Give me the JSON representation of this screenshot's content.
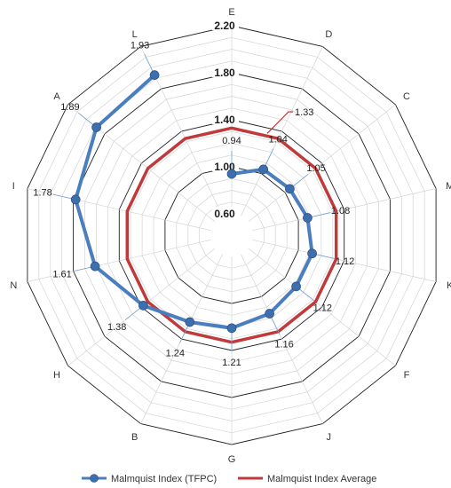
{
  "chart_data": {
    "type": "radar",
    "categories": [
      "E",
      "D",
      "C",
      "M",
      "K",
      "F",
      "J",
      "G",
      "B",
      "H",
      "N",
      "I",
      "A",
      "L"
    ],
    "series": [
      {
        "name": "Malmquist Index (TFPC)",
        "color": "#4a7ebf",
        "values": [
          0.94,
          1.04,
          1.05,
          1.08,
          1.12,
          1.12,
          1.16,
          1.21,
          1.24,
          1.38,
          1.61,
          1.78,
          1.89,
          1.93
        ],
        "labels": [
          "0.94",
          "1.04",
          "1.05",
          "1.08",
          "1.12",
          "1.12",
          "1.16",
          "1.21",
          "1.24",
          "1.38",
          "1.61",
          "1.78",
          "1.89",
          "1.93"
        ]
      },
      {
        "name": "Malmquist Index Average",
        "color": "#c0393b",
        "values": [
          1.33,
          1.33,
          1.33,
          1.33,
          1.33,
          1.33,
          1.33,
          1.33,
          1.33,
          1.33,
          1.33,
          1.33,
          1.33,
          1.33
        ],
        "label": "1.33"
      }
    ],
    "rlim": [
      0.6,
      2.2
    ],
    "ticks": [
      0.6,
      1.0,
      1.4,
      1.8,
      2.2
    ],
    "tick_labels": [
      "0.60",
      "1.00",
      "1.40",
      "1.80",
      "2.20"
    ],
    "legend_position": "bottom",
    "grid": true
  }
}
